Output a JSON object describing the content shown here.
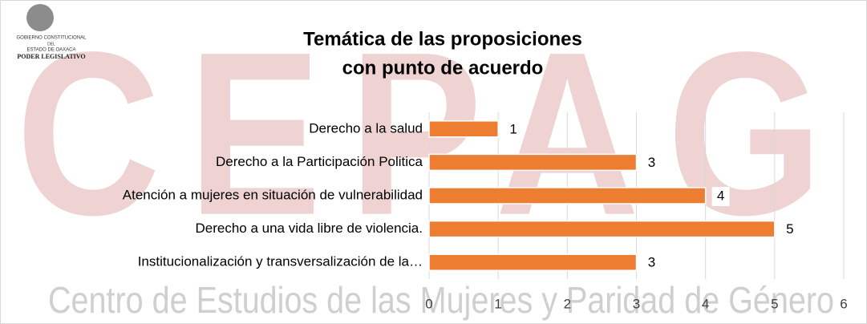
{
  "logo": {
    "lines": [
      "GOBIERNO CONSTITUCIONAL",
      "DEL",
      "ESTADO DE OAXACA",
      "PODER LEGISLATIVO"
    ]
  },
  "watermark": {
    "letters": "CEPAG",
    "text": "Centro de Estudios de las Mujeres y Paridad de Género"
  },
  "chart_data": {
    "type": "hbar",
    "title": [
      "Temática de las proposiciones",
      "con punto de acuerdo"
    ],
    "categories": [
      "Derecho a la salud",
      "Derecho a la Participación Politica",
      "Atención a mujeres en situación de vulnerabilidad",
      "Derecho a una vida libre de violencia.",
      "Institucionalización y transversalización de la…"
    ],
    "values": [
      1,
      3,
      4,
      5,
      3
    ],
    "color": "#ed7d31",
    "xlim": [
      0,
      6
    ],
    "xticks": [
      0,
      1,
      2,
      3,
      4,
      5,
      6
    ],
    "grid": true
  }
}
